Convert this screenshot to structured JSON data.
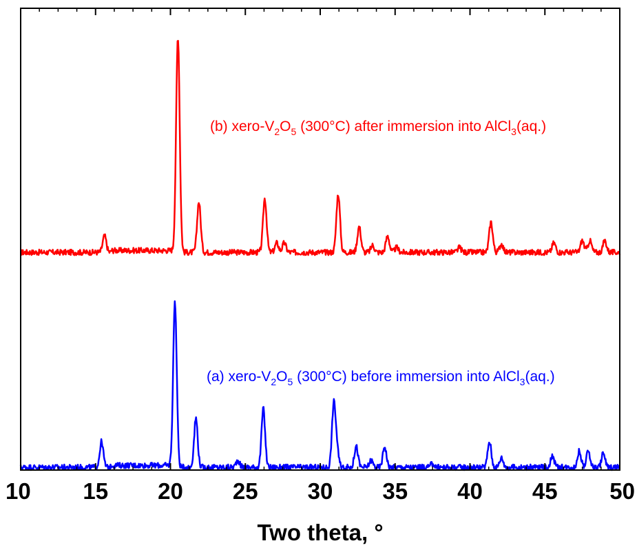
{
  "chart_data": {
    "type": "line",
    "title": "",
    "xlabel": "Two theta, °",
    "ylabel": "",
    "xlim": [
      10,
      50
    ],
    "x_ticks": [
      "10",
      "15",
      "20",
      "25",
      "30",
      "35",
      "40",
      "45",
      "50"
    ],
    "grid": false,
    "legend": "none",
    "y_units": "arbitrary intensity, stacked offset",
    "series": [
      {
        "color": "#ff0000",
        "baseline": 0.46,
        "peaks": [
          {
            "x": 15.6,
            "height": 0.035
          },
          {
            "x": 20.5,
            "height": 0.46
          },
          {
            "x": 21.9,
            "height": 0.108
          },
          {
            "x": 26.3,
            "height": 0.115
          },
          {
            "x": 27.1,
            "height": 0.02
          },
          {
            "x": 27.6,
            "height": 0.02
          },
          {
            "x": 31.2,
            "height": 0.125
          },
          {
            "x": 32.6,
            "height": 0.055
          },
          {
            "x": 33.5,
            "height": 0.015
          },
          {
            "x": 34.5,
            "height": 0.035
          },
          {
            "x": 35.1,
            "height": 0.01
          },
          {
            "x": 39.3,
            "height": 0.01
          },
          {
            "x": 41.4,
            "height": 0.065
          },
          {
            "x": 42.1,
            "height": 0.018
          },
          {
            "x": 45.6,
            "height": 0.02
          },
          {
            "x": 47.5,
            "height": 0.025
          },
          {
            "x": 48.0,
            "height": 0.025
          },
          {
            "x": 49.0,
            "height": 0.025
          }
        ]
      },
      {
        "color": "#0000ff",
        "baseline": 0.0,
        "peaks": [
          {
            "x": 15.4,
            "height": 0.055
          },
          {
            "x": 20.3,
            "height": 0.35
          },
          {
            "x": 21.7,
            "height": 0.105
          },
          {
            "x": 24.5,
            "height": 0.015
          },
          {
            "x": 26.2,
            "height": 0.125
          },
          {
            "x": 30.9,
            "height": 0.13
          },
          {
            "x": 31.1,
            "height": 0.04
          },
          {
            "x": 32.4,
            "height": 0.045
          },
          {
            "x": 33.4,
            "height": 0.015
          },
          {
            "x": 34.3,
            "height": 0.045
          },
          {
            "x": 37.5,
            "height": 0.008
          },
          {
            "x": 41.3,
            "height": 0.055
          },
          {
            "x": 42.1,
            "height": 0.02
          },
          {
            "x": 45.5,
            "height": 0.025
          },
          {
            "x": 47.3,
            "height": 0.035
          },
          {
            "x": 47.9,
            "height": 0.035
          },
          {
            "x": 48.9,
            "height": 0.03
          }
        ]
      }
    ],
    "annotations": [
      {
        "color": "#ff0000",
        "parts": [
          {
            "t": "(b) xero-V"
          },
          {
            "t": "2",
            "sub": true
          },
          {
            "t": "O"
          },
          {
            "t": "5",
            "sub": true
          },
          {
            "t": " (300°C) after immersion into AlCl"
          },
          {
            "t": "3",
            "sub": true
          },
          {
            "t": "(aq.)"
          }
        ]
      },
      {
        "color": "#0000ff",
        "parts": [
          {
            "t": "(a) xero-V"
          },
          {
            "t": "2",
            "sub": true
          },
          {
            "t": "O"
          },
          {
            "t": "5",
            "sub": true
          },
          {
            "t": " (300°C) before immersion into AlCl"
          },
          {
            "t": "3",
            "sub": true
          },
          {
            "t": "(aq.)"
          }
        ]
      }
    ]
  }
}
